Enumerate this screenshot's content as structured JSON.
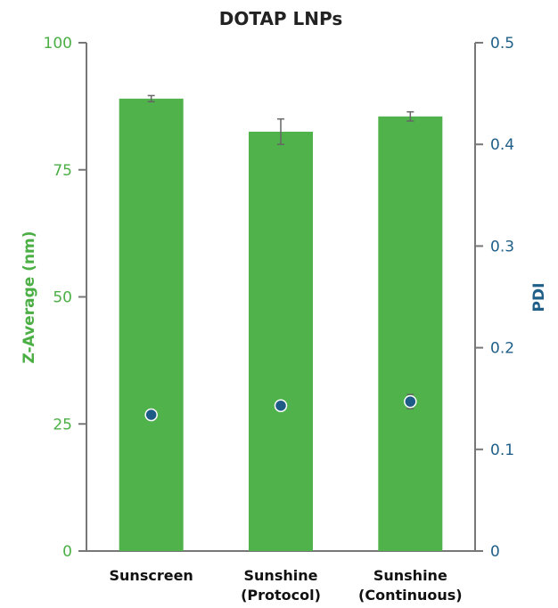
{
  "chart_data": {
    "type": "bar",
    "title": "DOTAP LNPs",
    "categories": [
      [
        "Sunscreen"
      ],
      [
        "Sunshine",
        "(Protocol)"
      ],
      [
        "Sunshine",
        "(Continuous)"
      ]
    ],
    "series": [
      {
        "name": "Z-Average (nm)",
        "type": "bar",
        "axis": "left",
        "values": [
          89.0,
          82.5,
          85.5
        ],
        "errors": [
          0.6,
          2.5,
          0.9
        ]
      },
      {
        "name": "PDI",
        "type": "scatter",
        "axis": "right",
        "values": [
          0.134,
          0.143,
          0.147
        ],
        "errors": [
          0.005,
          0.004,
          0.007
        ]
      }
    ],
    "ylabel": "Z-Average (nm)",
    "ylabel_right": "PDI",
    "ylim": [
      0,
      100
    ],
    "ylim_right": [
      0,
      0.5
    ],
    "yticks": [
      "0",
      "25",
      "50",
      "75",
      "100"
    ],
    "yticks_right": [
      "0",
      "0.1",
      "0.2",
      "0.3",
      "0.4",
      "0.5"
    ],
    "grid": false,
    "colors": {
      "bar": "#4fb24a",
      "left_axis_text": "#4caf45",
      "right_axis_text": "#1f5f88",
      "marker_fill": "#1e5b86",
      "axis_line": "#777777",
      "error_bar": "#666666"
    }
  }
}
